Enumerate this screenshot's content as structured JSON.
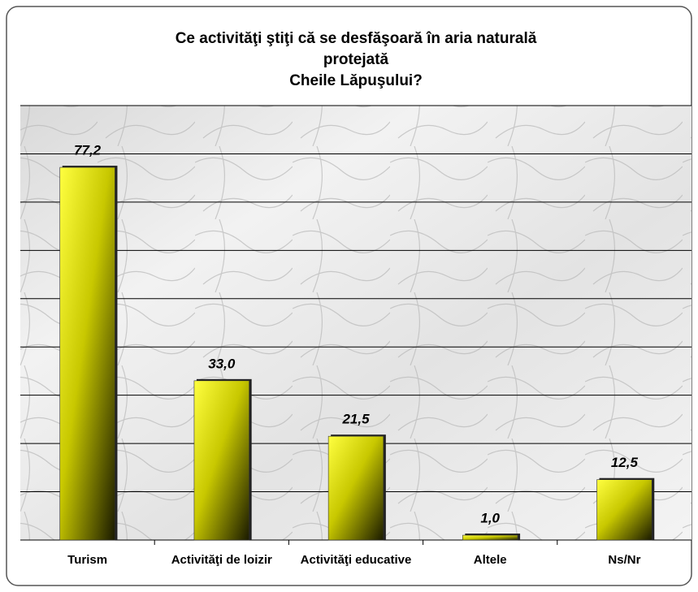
{
  "chart_data": {
    "type": "bar",
    "title": [
      "Ce activităţi ştiţi că se desfăşoară  în aria naturală",
      "protejată",
      "Cheile Lăpuşului?"
    ],
    "categories": [
      "Turism",
      "Activităţi de loizir",
      "Activităţi educative",
      "Altele",
      "Ns/Nr"
    ],
    "values": [
      77.2,
      33.0,
      21.5,
      1.0,
      12.5
    ],
    "value_labels": [
      "77,2",
      "33,0",
      "21,5",
      "1,0",
      "12,5"
    ],
    "color": "#ffff00",
    "ylim": [
      0,
      90
    ],
    "yticks": [
      0,
      10,
      20,
      30,
      40,
      50,
      60,
      70,
      80,
      90
    ],
    "grid": true
  }
}
